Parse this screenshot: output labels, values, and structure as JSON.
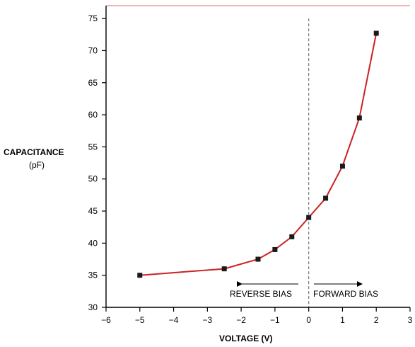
{
  "chart_data": {
    "type": "line",
    "xlabel": "VOLTAGE (V)",
    "ylabel": "CAPACITANCE",
    "ylabel_unit": "(pF)",
    "xlim": [
      -6,
      3
    ],
    "ylim": [
      30,
      77
    ],
    "x_ticks": [
      -6,
      -5,
      -4,
      -3,
      -2,
      -1,
      0,
      1,
      2,
      3
    ],
    "x_tick_labels": [
      "−6",
      "−5",
      "−4",
      "−3",
      "−2",
      "−1",
      "0",
      "1",
      "2",
      "3"
    ],
    "y_ticks": [
      30,
      35,
      40,
      45,
      50,
      55,
      60,
      65,
      70,
      75
    ],
    "y_tick_labels": [
      "30",
      "35",
      "40",
      "45",
      "50",
      "55",
      "60",
      "65",
      "70",
      "75"
    ],
    "grid": false,
    "series": [
      {
        "x": [
          -5,
          -2.5,
          -1.5,
          -1,
          -0.5,
          0,
          0.5,
          1,
          1.5,
          2
        ],
        "values": [
          35,
          36,
          37.5,
          39,
          41,
          44,
          47,
          52,
          59.5,
          72.7
        ],
        "line_color": "#cc2222",
        "marker_color": "#1a1a1a"
      }
    ],
    "reference_line": {
      "x": 0,
      "style": "dashed",
      "color": "#777777"
    },
    "annotations": {
      "reverse_bias": "REVERSE BIAS",
      "forward_bias": "FORWARD BIAS"
    },
    "top_border_color": "#e8a0a0"
  }
}
